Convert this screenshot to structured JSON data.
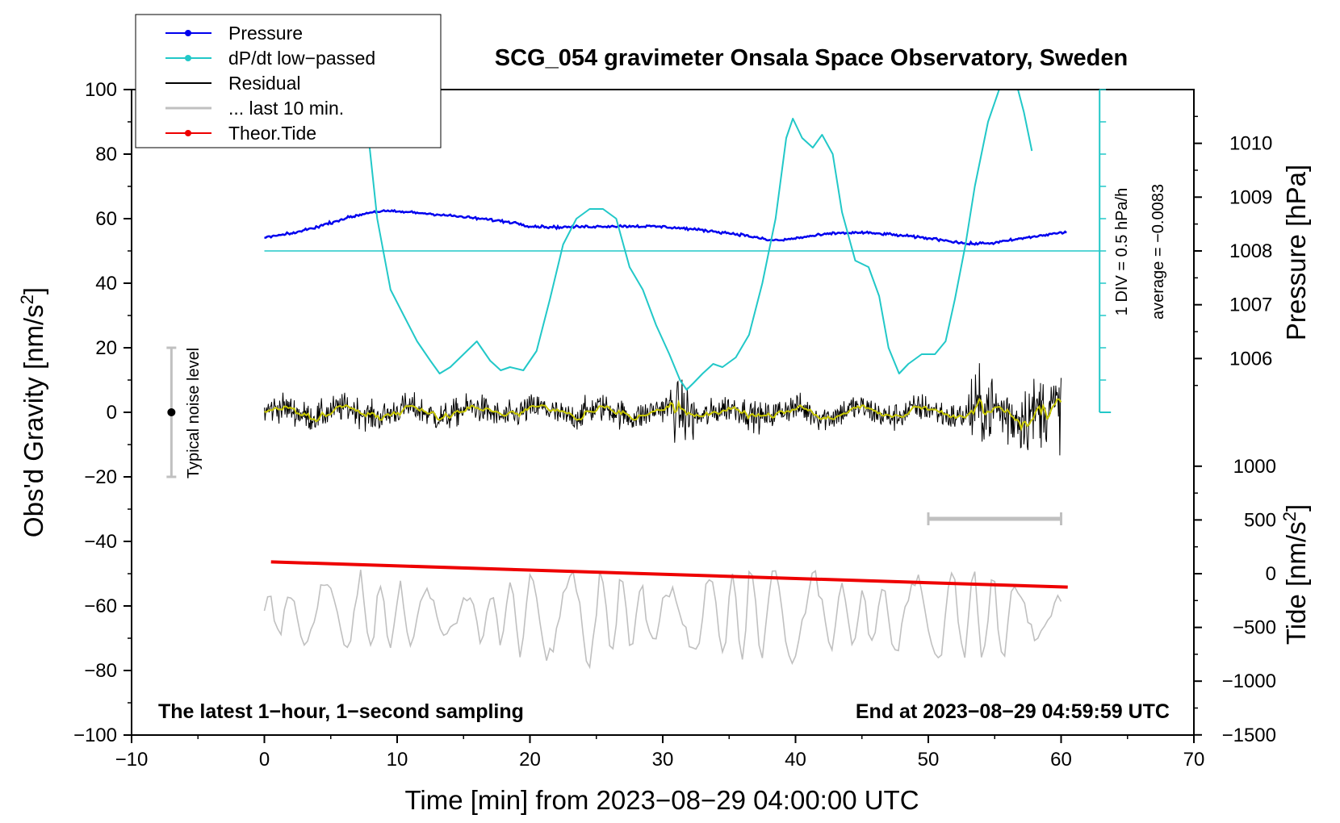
{
  "colors": {
    "pressure": "#0000ee",
    "dpdt": "#22c8c8",
    "residual": "#000000",
    "last10": "#c0c0c0",
    "tide": "#ee0000",
    "smooth": "#c8c800"
  },
  "chart_data": {
    "type": "line",
    "title": "SCG_054 gravimeter Onsala Space Observatory, Sweden",
    "xlabel": "Time [min] from 2023−08−29 04:00:00 UTC",
    "ylabel_left": "Obs'd Gravity [nm/s",
    "ylabel_left_sup": "2",
    "ylabel_left_end": "]",
    "ylabel_pressure": "Pressure [hPa]",
    "ylabel_tide": "Tide [nm/s",
    "ylabel_tide_sup": "2",
    "ylabel_tide_end": "]",
    "xlim": [
      -10,
      70
    ],
    "ylim": [
      -100,
      100
    ],
    "x_ticks": [
      -10,
      0,
      10,
      20,
      30,
      40,
      50,
      60,
      70
    ],
    "x_tick_labels": [
      "−10",
      "0",
      "10",
      "20",
      "30",
      "40",
      "50",
      "60",
      "70"
    ],
    "y_ticks": [
      -100,
      -80,
      -60,
      -40,
      -20,
      0,
      20,
      40,
      60,
      80,
      100
    ],
    "y_tick_labels": [
      "−100",
      "−80",
      "−60",
      "−40",
      "−20",
      "0",
      "20",
      "40",
      "60",
      "80",
      "100"
    ],
    "pressure_axis": {
      "ticks": [
        1006,
        1007,
        1008,
        1009,
        1010
      ],
      "tick_labels": [
        "1006",
        "1007",
        "1008",
        "1009",
        "1010"
      ],
      "gravity_at_1008": 50,
      "gravity_per_hPa": 16.67
    },
    "tide_axis": {
      "ticks": [
        -1500,
        -1000,
        -500,
        0,
        500,
        1000
      ],
      "tick_labels": [
        "−1500",
        "−1000",
        "−500",
        "0",
        "500",
        "1000"
      ],
      "gravity_at_0": -50,
      "gravity_per_unit": 0.0333
    },
    "dpdt_axis": {
      "baseline_gravity": 0,
      "top_gravity": 100,
      "divisions": 10,
      "label_div": "1 DIV = 0.5 hPa/h",
      "label_avg": "average = −0.0083"
    },
    "legend": [
      {
        "label": "Pressure",
        "series": "pressure",
        "marker": true
      },
      {
        "label": "dP/dt low−passed",
        "series": "dpdt",
        "marker": true
      },
      {
        "label": "Residual",
        "series": "residual",
        "marker": false
      },
      {
        "label": "... last 10 min.",
        "series": "last10",
        "marker": false
      },
      {
        "label": "Theor.Tide",
        "series": "tide",
        "marker": true
      }
    ],
    "noise_level": {
      "x": -7,
      "y_min": -20,
      "y_max": 20,
      "center": 0,
      "label": "Typical noise level"
    },
    "last10_bar": {
      "x_start": 50,
      "x_end": 60,
      "y": -33
    },
    "note_left": "The latest 1−hour, 1−second sampling",
    "note_right": "End at 2023−08−29 04:59:59 UTC",
    "series": {
      "pressure": {
        "name": "Pressure",
        "unit": "hPa",
        "x": [
          0,
          2,
          4,
          6,
          8,
          9,
          11,
          13,
          15,
          17,
          19,
          20,
          22,
          24,
          26,
          28,
          30,
          32,
          34,
          36,
          38,
          39,
          41,
          43,
          45,
          47,
          49,
          51,
          53,
          55,
          57,
          60
        ],
        "y": [
          1008.25,
          1008.32,
          1008.45,
          1008.6,
          1008.72,
          1008.74,
          1008.72,
          1008.68,
          1008.63,
          1008.58,
          1008.52,
          1008.46,
          1008.44,
          1008.45,
          1008.46,
          1008.46,
          1008.45,
          1008.41,
          1008.36,
          1008.3,
          1008.2,
          1008.2,
          1008.27,
          1008.33,
          1008.34,
          1008.31,
          1008.26,
          1008.21,
          1008.13,
          1008.15,
          1008.23,
          1008.34
        ]
      },
      "dpdt": {
        "name": "dP/dt low-passed",
        "unit": "gravity-equivalent",
        "x": [
          7.9,
          8.5,
          9.5,
          10.5,
          11.5,
          12.5,
          13.2,
          14.0,
          15.0,
          16.0,
          17.0,
          17.8,
          18.5,
          19.5,
          20.5,
          21.5,
          22.5,
          23.5,
          24.5,
          25.5,
          26.5,
          27.5,
          28.5,
          29.5,
          30.5,
          31.3,
          31.8,
          32.3,
          33.0,
          33.8,
          34.5,
          35.5,
          36.5,
          37.5,
          38.5,
          39.3,
          39.8,
          40.5,
          41.3,
          42.0,
          42.8,
          43.5,
          44.5,
          45.5,
          46.3,
          47.0,
          47.8,
          48.5,
          49.5,
          50.5,
          51.3,
          52.0,
          52.8,
          53.5,
          54.5,
          55.5,
          56.5,
          57.2,
          57.8
        ],
        "y": [
          83,
          60,
          38,
          30,
          22,
          16,
          12,
          14,
          18,
          22,
          16,
          13,
          14,
          13,
          19,
          35,
          52,
          60,
          63,
          63,
          60,
          45,
          38,
          27,
          18,
          10,
          7,
          9,
          12,
          15,
          14,
          17,
          24,
          40,
          60,
          85,
          91,
          85,
          82,
          86,
          80,
          62,
          47,
          45,
          36,
          20,
          12,
          15,
          18,
          18,
          22,
          35,
          52,
          70,
          90,
          102,
          104,
          93,
          81
        ]
      },
      "residual": {
        "name": "Residual",
        "unit": "nm/s²",
        "generated": true,
        "baseline": 0
      },
      "last10": {
        "name": "... last 10 min.",
        "unit": "nm/s² (shifted)",
        "generated": true,
        "baseline": -63
      },
      "tide": {
        "name": "Theor.Tide",
        "unit": "nm/s²",
        "x": [
          0.5,
          60.5
        ],
        "y": [
          110,
          -125
        ]
      }
    }
  }
}
